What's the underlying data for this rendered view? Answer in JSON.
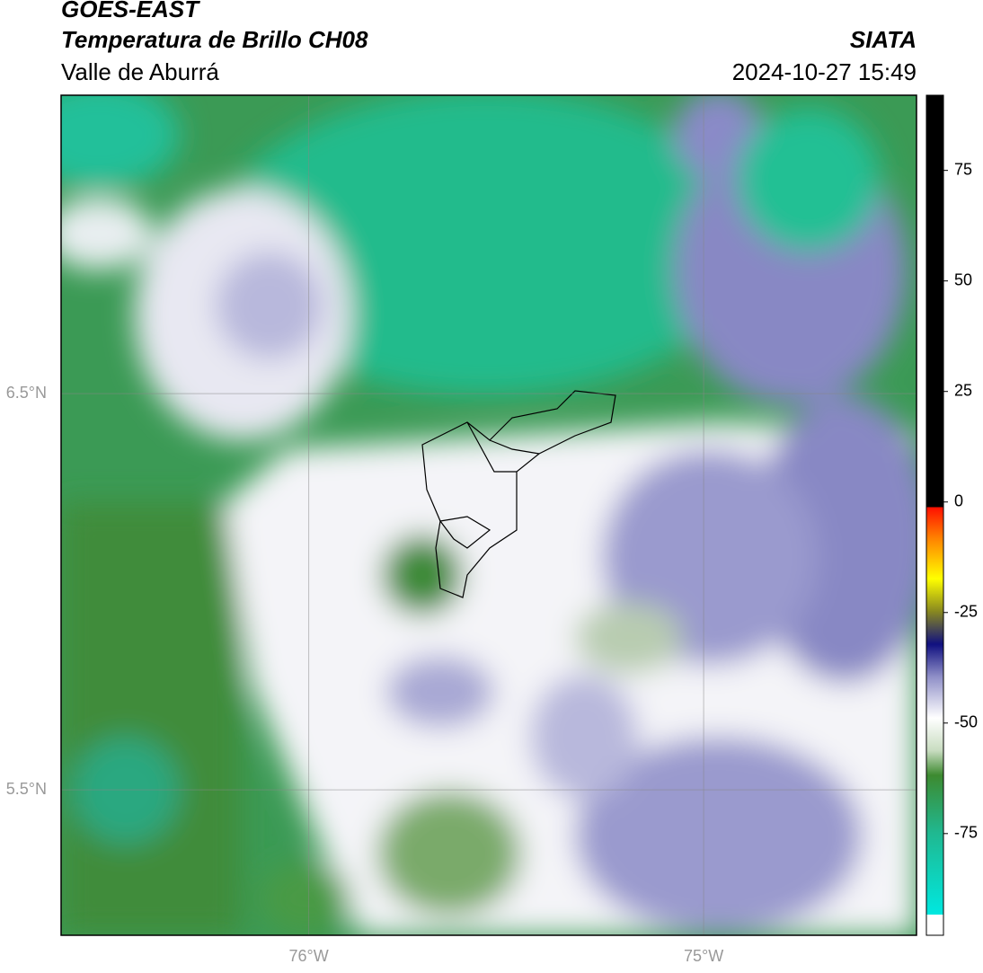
{
  "header": {
    "title": "GOES-EAST",
    "product": "Temperatura de Brillo CH08",
    "region": "Valle de Aburrá",
    "source": "SIATA",
    "timestamp": "2024-10-27 15:49"
  },
  "map": {
    "xlim": [
      -76.627,
      -74.461
    ],
    "ylim": [
      5.133,
      7.253
    ],
    "xticks": [
      {
        "value": -76,
        "label": "76°W"
      },
      {
        "value": -75,
        "label": "75°W"
      }
    ],
    "yticks": [
      {
        "value": 6.5,
        "label": "6.5°N"
      },
      {
        "value": 5.5,
        "label": "5.5°N"
      }
    ]
  },
  "colorbar": {
    "lim": [
      -98,
      92
    ],
    "ticks": [
      75,
      50,
      25,
      0,
      -25,
      -50,
      -75
    ]
  }
}
